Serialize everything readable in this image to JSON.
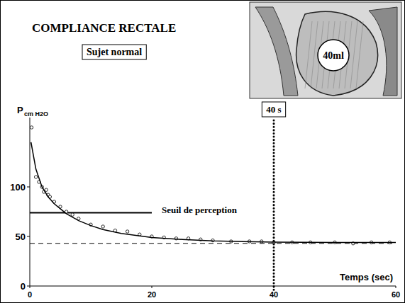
{
  "chart_data": {
    "type": "scatter",
    "title": "COMPLIANCE RECTALE",
    "subtitle": "Sujet normal",
    "xlabel": "Temps (sec)",
    "ylabel": "P",
    "ylabel_unit": "cm H2O",
    "xlim": [
      0,
      60
    ],
    "ylim": [
      0,
      170
    ],
    "xticks": [
      0,
      20,
      40,
      60
    ],
    "yticks": [
      0,
      50,
      100
    ],
    "grid": false,
    "series": [
      {
        "type": "scatter",
        "marker": "circle",
        "color": "#000000",
        "x": [
          0.3,
          1,
          1.5,
          2,
          2.3,
          2.7,
          3,
          3.3,
          4,
          5,
          6,
          7,
          8,
          10,
          12,
          14,
          16,
          18,
          20,
          22,
          24,
          26,
          28,
          30,
          33,
          36,
          38,
          40,
          43,
          46,
          50,
          53,
          56,
          59
        ],
        "values": [
          160,
          110,
          105,
          100,
          95,
          97,
          92,
          90,
          85,
          80,
          75,
          72,
          68,
          62,
          60,
          56,
          55,
          52,
          50,
          49,
          48,
          48,
          47,
          46,
          45,
          45,
          45,
          44,
          44,
          44,
          44,
          43,
          44,
          44
        ]
      },
      {
        "type": "line",
        "line_style": "solid",
        "color": "#000000",
        "x": [
          0.2,
          1,
          2,
          3,
          4,
          5,
          6,
          8,
          10,
          12,
          15,
          20,
          25,
          30,
          35,
          40,
          50,
          60
        ],
        "values": [
          145,
          118,
          100,
          90,
          83,
          78,
          73,
          66,
          61,
          57,
          53,
          49,
          47,
          45.5,
          44.8,
          44.3,
          44,
          44
        ]
      }
    ],
    "threshold": {
      "text": "Seuil de perception",
      "y": 74,
      "x": [
        0,
        20
      ]
    },
    "baseline": {
      "y": 43,
      "x": [
        0,
        60
      ]
    },
    "time_marker": {
      "text": "40 s",
      "x": 40
    },
    "inset_label": "40ml"
  }
}
